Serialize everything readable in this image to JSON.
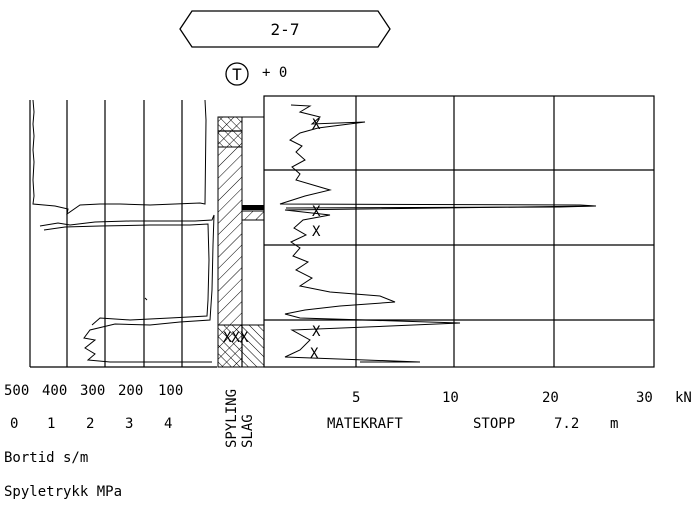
{
  "header": {
    "borehole_id": "2-7",
    "symbol": "T",
    "start_level": "+ 0"
  },
  "left_panel": {
    "bortid_ticks": [
      "500",
      "400",
      "300",
      "200",
      "100"
    ],
    "spyletrykk_ticks": [
      "0",
      "1",
      "2",
      "3",
      "4"
    ],
    "bortid_label": "Bortid s/m",
    "spyletrykk_label": "Spyletrykk MPa"
  },
  "middle_panel": {
    "spyling_label": "SPYLING",
    "slag_label": "SLAG"
  },
  "right_panel": {
    "ticks": [
      "5",
      "10",
      "20",
      "30"
    ],
    "unit": "kN",
    "matekraft_label": "MATEKRAFT",
    "stopp_label": "STOPP",
    "stopp_value": "7.2",
    "stopp_unit": "m"
  },
  "chart_data": {
    "type": "line",
    "series": [
      {
        "name": "MATEKRAFT",
        "depth_m": [
          0,
          0.3,
          0.5,
          0.8,
          1.1,
          1.3,
          1.6,
          1.9,
          2.0,
          2.2,
          2.5,
          2.8,
          3.0,
          3.3,
          3.6,
          3.9,
          4.2,
          4.5,
          4.8,
          5.1,
          5.4,
          5.7,
          6.0,
          6.3,
          6.6,
          6.9,
          7.2
        ],
        "kN": [
          3,
          6,
          2,
          3,
          1.5,
          2,
          2.5,
          3,
          4,
          26,
          2,
          3,
          2,
          3,
          4,
          3,
          5,
          7,
          3,
          4,
          2,
          12,
          2,
          3,
          2,
          8,
          8
        ]
      }
    ]
  }
}
